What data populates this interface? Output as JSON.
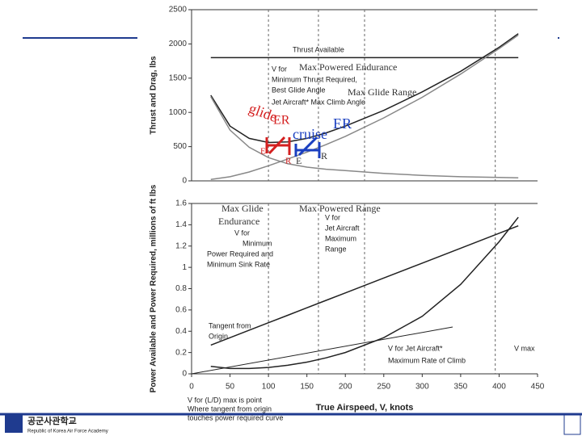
{
  "chart_data": [
    {
      "type": "line",
      "y_label": "Thrust and Drag, lbs",
      "x": [
        25,
        50,
        75,
        100,
        125,
        150,
        175,
        200,
        250,
        300,
        350,
        400,
        425
      ],
      "series": [
        {
          "name": "Thrust Available",
          "color": "#222222",
          "values": [
            1800,
            1800,
            1800,
            1800,
            1800,
            1800,
            1800,
            1800,
            1800,
            1800,
            1800,
            1800,
            1800
          ]
        },
        {
          "color": "#222222",
          "values": [
            1250,
            800,
            620,
            560,
            570,
            620,
            700,
            800,
            1030,
            1300,
            1600,
            1950,
            2150
          ]
        },
        {
          "color": "#888888",
          "values": [
            20,
            60,
            130,
            220,
            320,
            420,
            530,
            650,
            920,
            1220,
            1560,
            1930,
            2130
          ]
        },
        {
          "color": "#888888",
          "values": [
            1230,
            740,
            490,
            340,
            250,
            200,
            170,
            150,
            110,
            80,
            60,
            50,
            45
          ]
        }
      ],
      "xlim": [
        0,
        450
      ],
      "ylim": [
        0,
        2500
      ],
      "yticks": [
        0,
        500,
        1000,
        1500,
        2000,
        2500
      ],
      "annotations": [
        "Thrust Available",
        "V for",
        "Minimum Thrust Required,",
        "Best Glide Angle",
        "Jet Aircraft* Max Climb Angle"
      ]
    },
    {
      "type": "line",
      "x_label": "True Airspeed, V, knots",
      "y_label": "Power Available and Power Required, millions of ft lbs",
      "x": [
        25,
        50,
        75,
        100,
        125,
        150,
        175,
        200,
        250,
        300,
        350,
        400,
        425
      ],
      "series": [
        {
          "name": "Power Available",
          "color": "#222222",
          "values": [
            0.27,
            0.34,
            0.41,
            0.48,
            0.55,
            0.62,
            0.69,
            0.76,
            0.9,
            1.04,
            1.18,
            1.32,
            1.39
          ]
        },
        {
          "name": "Power Required",
          "color": "#222222",
          "values": [
            0.07,
            0.05,
            0.05,
            0.06,
            0.08,
            0.11,
            0.15,
            0.2,
            0.34,
            0.54,
            0.84,
            1.24,
            1.47
          ]
        }
      ],
      "xlim": [
        0,
        450
      ],
      "xticks": [
        0,
        50,
        100,
        150,
        200,
        250,
        300,
        350,
        400,
        450
      ],
      "ylim": [
        0,
        1.6
      ],
      "yticks": [
        0,
        0.2,
        0.4,
        0.6,
        0.8,
        1,
        1.2,
        1.4,
        1.6
      ],
      "annotations": [
        "V for",
        "Minimum",
        "Power Required and",
        "Minimum Sink Rate",
        "V for",
        "Jet Aircraft",
        "Maximum",
        "Range",
        "Tangent from",
        "Origin",
        "V for Jet Aircraft*",
        "Maximum Rate of Climb",
        "V max",
        "V for (L/D) max is point",
        "Where tangent from origin",
        "touches power required curve"
      ]
    }
  ],
  "overlays": [
    "Max Powered Endurance",
    "Max Glide Range",
    "glide",
    "ER",
    "cruise",
    "ER",
    "E",
    "R",
    "E",
    "R",
    "Max Glide",
    "Endurance",
    "Max Powered Range"
  ],
  "footer": {
    "logo_text": "공군사관학교",
    "logo_subtext": "Republic of Korea Air Force Academy"
  }
}
